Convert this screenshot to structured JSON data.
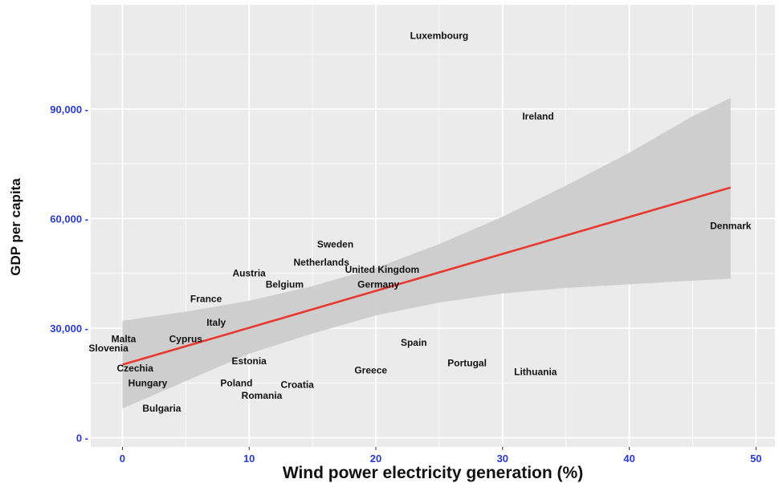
{
  "chart_data": {
    "type": "scatter",
    "xlabel": "Wind power electricity generation (%)",
    "ylabel": "GDP per capita",
    "xlim": [
      -2.5,
      51.5
    ],
    "ylim": [
      -2500,
      118500
    ],
    "xticks": [
      0,
      10,
      20,
      30,
      40,
      50
    ],
    "xtick_labels": [
      "0",
      "10",
      "20",
      "30",
      "40",
      "50"
    ],
    "yticks": [
      0,
      30000,
      60000,
      90000
    ],
    "ytick_labels": [
      "0 -",
      "30,000 -",
      "60,000 -",
      "90,000 -"
    ],
    "grid": true,
    "points": [
      {
        "name": "Luxembourg",
        "x": 25.0,
        "y": 110000
      },
      {
        "name": "Ireland",
        "x": 32.8,
        "y": 88000
      },
      {
        "name": "Denmark",
        "x": 48.0,
        "y": 58000
      },
      {
        "name": "Sweden",
        "x": 16.8,
        "y": 53000
      },
      {
        "name": "Netherlands",
        "x": 15.7,
        "y": 48000
      },
      {
        "name": "United Kingdom",
        "x": 20.5,
        "y": 46000
      },
      {
        "name": "Austria",
        "x": 10.0,
        "y": 45000
      },
      {
        "name": "Belgium",
        "x": 12.8,
        "y": 42000
      },
      {
        "name": "Germany",
        "x": 20.2,
        "y": 42000
      },
      {
        "name": "France",
        "x": 6.6,
        "y": 38000
      },
      {
        "name": "Italy",
        "x": 7.4,
        "y": 31500
      },
      {
        "name": "Malta",
        "x": 0.1,
        "y": 27000
      },
      {
        "name": "Cyprus",
        "x": 5.0,
        "y": 27000
      },
      {
        "name": "Slovenia",
        "x": -1.1,
        "y": 24500
      },
      {
        "name": "Spain",
        "x": 23.0,
        "y": 26000
      },
      {
        "name": "Estonia",
        "x": 10.0,
        "y": 21000
      },
      {
        "name": "Portugal",
        "x": 27.2,
        "y": 20500
      },
      {
        "name": "Czechia",
        "x": 1.0,
        "y": 19000
      },
      {
        "name": "Greece",
        "x": 19.6,
        "y": 18500
      },
      {
        "name": "Lithuania",
        "x": 32.6,
        "y": 18000
      },
      {
        "name": "Hungary",
        "x": 2.0,
        "y": 15000
      },
      {
        "name": "Poland",
        "x": 9.0,
        "y": 15000
      },
      {
        "name": "Croatia",
        "x": 13.8,
        "y": 14500
      },
      {
        "name": "Romania",
        "x": 11.0,
        "y": 11500
      },
      {
        "name": "Bulgaria",
        "x": 3.1,
        "y": 8000
      }
    ],
    "fit_line": {
      "x": [
        0,
        48
      ],
      "y": [
        20000,
        68500
      ],
      "color": "#e8382f"
    },
    "confidence_band": {
      "x": [
        0,
        5,
        10,
        15,
        20,
        25,
        30,
        35,
        40,
        45,
        48
      ],
      "lower": [
        8000,
        15500,
        23000,
        28500,
        33500,
        37000,
        39500,
        41000,
        42000,
        43000,
        43500
      ],
      "upper": [
        32000,
        34500,
        37500,
        41500,
        46500,
        53000,
        60500,
        69000,
        78000,
        88000,
        93000
      ],
      "color": "#cccccc"
    },
    "colors": {
      "panel": "#ebebeb",
      "grid": "#ffffff",
      "ytick": "#2b3ad6",
      "label": "#111111"
    }
  }
}
